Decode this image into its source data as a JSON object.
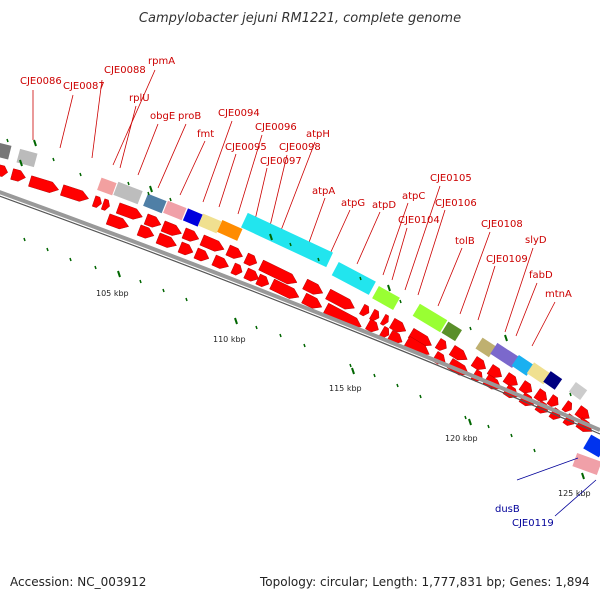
{
  "title": "Campylobacter jejuni RM1221, complete genome",
  "footer": {
    "accession": "Accession: NC_003912",
    "summary": "Topology: circular; Length: 1,777,831 bp; Genes: 1,894"
  },
  "colors": {
    "forward_label": "#cc0000",
    "reverse_label": "#000099",
    "cds_arrow": "#ff0000",
    "backbone": "#999999",
    "tick": "#006600"
  },
  "ticks": [
    {
      "label": "105 kbp"
    },
    {
      "label": "110 kbp"
    },
    {
      "label": "115 kbp"
    },
    {
      "label": "120 kbp"
    },
    {
      "label": "125 kbp"
    }
  ],
  "labels_forward": [
    "CJE0086",
    "CJE0087",
    "CJE0088",
    "rpmA",
    "rplU",
    "obgE",
    "proB",
    "fmt",
    "CJE0094",
    "CJE0095",
    "CJE0096",
    "CJE0097",
    "CJE0098",
    "atpH",
    "atpA",
    "atpG",
    "atpD",
    "atpC",
    "CJE0104",
    "CJE0105",
    "CJE0106",
    "tolB",
    "CJE0108",
    "CJE0109",
    "slyD",
    "fabD",
    "mtnA"
  ],
  "labels_reverse": [
    "dusB",
    "CJE0119"
  ]
}
